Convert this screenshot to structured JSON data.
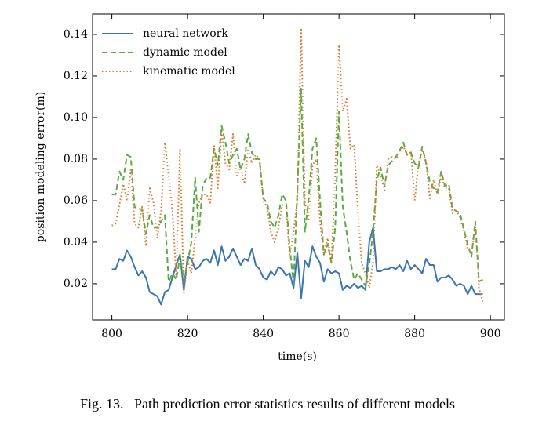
{
  "chart_data": {
    "type": "line",
    "xlabel": "time(s)",
    "ylabel": "position modeling error(m)",
    "caption": "Fig. 13.   Path prediction error statistics results of different models",
    "xlim": [
      794.9,
      903.7
    ],
    "ylim": [
      0.0026,
      0.1498
    ],
    "xticks": [
      800,
      820,
      840,
      860,
      880,
      900
    ],
    "yticks": [
      0.02,
      0.04,
      0.06,
      0.08,
      {
        "value": 0.1,
        "label": "0.10"
      },
      0.12,
      0.14
    ],
    "legend": "upper left",
    "x": [
      800,
      801,
      802,
      803,
      804,
      805,
      806,
      807,
      808,
      809,
      810,
      811,
      812,
      813,
      814,
      815,
      816,
      817,
      818,
      819,
      820,
      821,
      822,
      823,
      824,
      825,
      826,
      827,
      828,
      829,
      830,
      831,
      832,
      833,
      834,
      835,
      836,
      837,
      838,
      839,
      840,
      841,
      842,
      843,
      844,
      845,
      846,
      847,
      848,
      849,
      850,
      851,
      852,
      853,
      854,
      855,
      856,
      857,
      858,
      859,
      860,
      861,
      862,
      863,
      864,
      865,
      866,
      867,
      868,
      869,
      870,
      871,
      872,
      873,
      874,
      875,
      876,
      877,
      878,
      879,
      880,
      881,
      882,
      883,
      884,
      885,
      886,
      887,
      888,
      889,
      890,
      891,
      892,
      893,
      894,
      895,
      896,
      897,
      898
    ],
    "series": [
      {
        "name": "neural network",
        "color": "#3a76af",
        "dash": "solid",
        "values": [
          0.027,
          0.027,
          0.032,
          0.031,
          0.036,
          0.033,
          0.028,
          0.024,
          0.026,
          0.023,
          0.016,
          0.015,
          0.014,
          0.01,
          0.016,
          0.017,
          0.023,
          0.029,
          0.034,
          0.017,
          0.033,
          0.032,
          0.027,
          0.028,
          0.031,
          0.032,
          0.03,
          0.036,
          0.029,
          0.038,
          0.031,
          0.033,
          0.037,
          0.033,
          0.029,
          0.032,
          0.031,
          0.037,
          0.029,
          0.027,
          0.023,
          0.022,
          0.026,
          0.024,
          0.028,
          0.027,
          0.024,
          0.025,
          0.018,
          0.035,
          0.013,
          0.031,
          0.028,
          0.038,
          0.033,
          0.03,
          0.021,
          0.027,
          0.025,
          0.026,
          0.025,
          0.017,
          0.019,
          0.018,
          0.02,
          0.018,
          0.019,
          0.017,
          0.04,
          0.047,
          0.026,
          0.026,
          0.027,
          0.027,
          0.028,
          0.027,
          0.029,
          0.026,
          0.031,
          0.027,
          0.029,
          0.027,
          0.025,
          0.032,
          0.029,
          0.029,
          0.021,
          0.023,
          0.023,
          0.024,
          0.022,
          0.019,
          0.02,
          0.019,
          0.015,
          0.019,
          0.015,
          0.015,
          0.015
        ]
      },
      {
        "name": "dynamic model",
        "color": "#5aaa46",
        "dash": "dashed",
        "values": [
          0.063,
          0.063,
          0.074,
          0.07,
          0.082,
          0.081,
          0.057,
          0.056,
          0.056,
          0.044,
          0.053,
          0.047,
          0.047,
          0.05,
          0.053,
          0.021,
          0.025,
          0.022,
          0.033,
          0.022,
          0.03,
          0.04,
          0.071,
          0.045,
          0.067,
          0.071,
          0.071,
          0.085,
          0.077,
          0.096,
          0.088,
          0.078,
          0.082,
          0.085,
          0.075,
          0.08,
          0.092,
          0.083,
          0.08,
          0.08,
          0.061,
          0.059,
          0.05,
          0.047,
          0.053,
          0.063,
          0.06,
          0.037,
          0.02,
          0.065,
          0.114,
          0.045,
          0.061,
          0.085,
          0.09,
          0.06,
          0.034,
          0.039,
          0.03,
          0.047,
          0.103,
          0.057,
          0.045,
          0.031,
          0.022,
          0.025,
          0.022,
          0.019,
          0.029,
          0.045,
          0.07,
          0.076,
          0.067,
          0.077,
          0.079,
          0.081,
          0.084,
          0.088,
          0.082,
          0.083,
          0.078,
          0.076,
          0.086,
          0.078,
          0.069,
          0.066,
          0.064,
          0.074,
          0.067,
          0.068,
          0.056,
          0.055,
          0.054,
          0.046,
          0.039,
          0.033,
          0.05,
          0.021,
          0.022
        ]
      },
      {
        "name": "kinematic model",
        "color": "#d97a33",
        "dash": "dotted",
        "values": [
          0.048,
          0.049,
          0.058,
          0.068,
          0.06,
          0.075,
          0.049,
          0.047,
          0.057,
          0.038,
          0.066,
          0.059,
          0.042,
          0.055,
          0.088,
          0.072,
          0.055,
          0.023,
          0.085,
          0.015,
          0.031,
          0.025,
          0.042,
          0.059,
          0.063,
          0.063,
          0.059,
          0.087,
          0.066,
          0.094,
          0.078,
          0.075,
          0.092,
          0.072,
          0.076,
          0.068,
          0.085,
          0.078,
          0.082,
          0.08,
          0.06,
          0.057,
          0.045,
          0.04,
          0.047,
          0.058,
          0.058,
          0.033,
          0.045,
          0.06,
          0.143,
          0.059,
          0.051,
          0.077,
          0.08,
          0.05,
          0.034,
          0.042,
          0.03,
          0.073,
          0.135,
          0.103,
          0.109,
          0.085,
          0.087,
          0.055,
          0.03,
          0.025,
          0.018,
          0.03,
          0.077,
          0.072,
          0.065,
          0.08,
          0.081,
          0.08,
          0.083,
          0.086,
          0.082,
          0.084,
          0.06,
          0.078,
          0.084,
          0.079,
          0.061,
          0.07,
          0.063,
          0.072,
          0.066,
          0.066,
          0.054,
          0.055,
          0.052,
          0.045,
          0.037,
          0.035,
          0.047,
          0.018,
          0.011
        ]
      }
    ]
  }
}
